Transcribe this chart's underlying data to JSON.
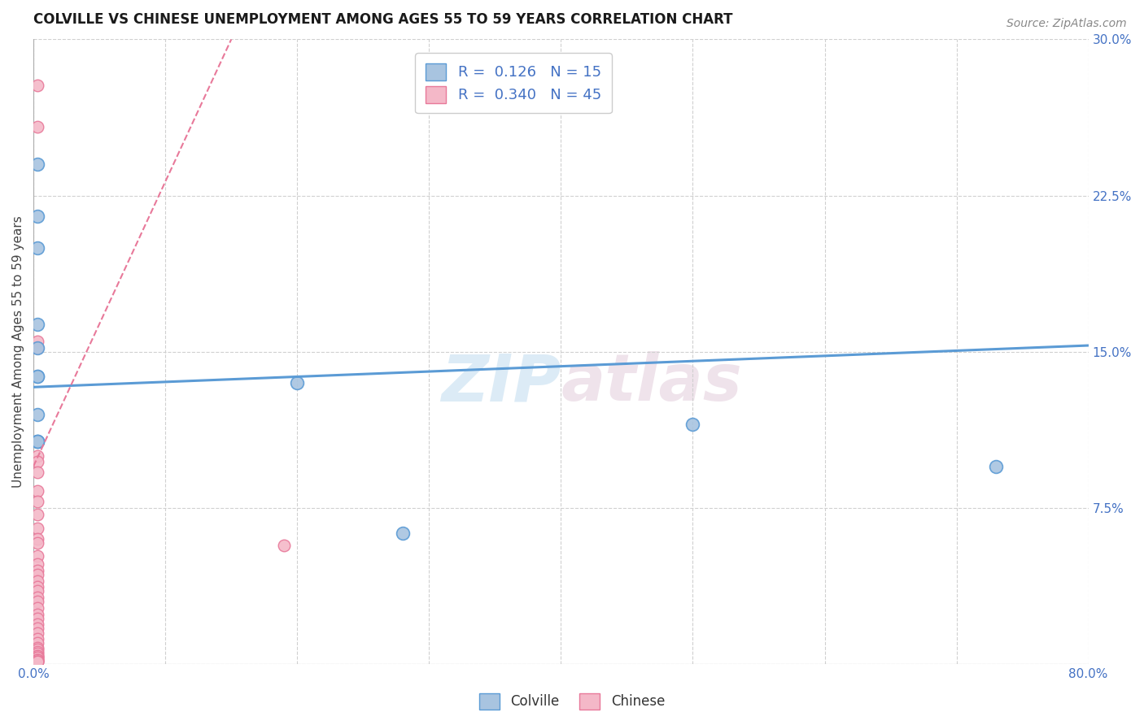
{
  "title": "COLVILLE VS CHINESE UNEMPLOYMENT AMONG AGES 55 TO 59 YEARS CORRELATION CHART",
  "source": "Source: ZipAtlas.com",
  "ylabel": "Unemployment Among Ages 55 to 59 years",
  "xlim": [
    0.0,
    0.8
  ],
  "ylim": [
    0.0,
    0.3
  ],
  "xticks": [
    0.0,
    0.1,
    0.2,
    0.3,
    0.4,
    0.5,
    0.6,
    0.7,
    0.8
  ],
  "xticklabels": [
    "0.0%",
    "",
    "",
    "",
    "",
    "",
    "",
    "",
    "80.0%"
  ],
  "yticks": [
    0.0,
    0.075,
    0.15,
    0.225,
    0.3
  ],
  "yticklabels": [
    "",
    "7.5%",
    "15.0%",
    "22.5%",
    "30.0%"
  ],
  "colville_x": [
    0.003,
    0.003,
    0.003,
    0.003,
    0.003,
    0.003,
    0.003,
    0.003,
    0.003,
    0.003,
    0.003,
    0.2,
    0.28,
    0.5,
    0.73
  ],
  "colville_y": [
    0.24,
    0.215,
    0.2,
    0.163,
    0.152,
    0.138,
    0.138,
    0.12,
    0.107,
    0.107,
    0.107,
    0.135,
    0.063,
    0.115,
    0.095
  ],
  "chinese_x": [
    0.003,
    0.003,
    0.003,
    0.003,
    0.003,
    0.003,
    0.003,
    0.003,
    0.003,
    0.003,
    0.003,
    0.003,
    0.003,
    0.003,
    0.003,
    0.003,
    0.003,
    0.003,
    0.003,
    0.003,
    0.003,
    0.003,
    0.003,
    0.003,
    0.003,
    0.003,
    0.003,
    0.003,
    0.003,
    0.003,
    0.003,
    0.003,
    0.003,
    0.003,
    0.003,
    0.003,
    0.003,
    0.003,
    0.003,
    0.003,
    0.003,
    0.003,
    0.003,
    0.003,
    0.19
  ],
  "chinese_y": [
    0.278,
    0.258,
    0.155,
    0.152,
    0.1,
    0.097,
    0.092,
    0.083,
    0.078,
    0.072,
    0.065,
    0.06,
    0.058,
    0.052,
    0.048,
    0.045,
    0.043,
    0.04,
    0.037,
    0.035,
    0.032,
    0.03,
    0.027,
    0.024,
    0.022,
    0.019,
    0.017,
    0.015,
    0.012,
    0.01,
    0.008,
    0.007,
    0.006,
    0.005,
    0.004,
    0.004,
    0.003,
    0.003,
    0.002,
    0.002,
    0.002,
    0.001,
    0.001,
    0.001,
    0.057
  ],
  "colville_color": "#a8c4e0",
  "colville_edge_color": "#5b9bd5",
  "chinese_color": "#f4b8c8",
  "chinese_edge_color": "#e8799a",
  "colville_R": "0.126",
  "colville_N": "15",
  "chinese_R": "0.340",
  "chinese_N": "45",
  "blue_line_x": [
    0.0,
    0.8
  ],
  "blue_line_y": [
    0.133,
    0.153
  ],
  "pink_line_x": [
    0.0,
    0.15
  ],
  "pink_line_y": [
    0.095,
    0.3
  ],
  "watermark_zip": "ZIP",
  "watermark_atlas": "atlas",
  "background_color": "#ffffff",
  "grid_color": "#d0d0d0",
  "legend_R_color": "#4472c4",
  "legend_N_color": "#4472c4"
}
